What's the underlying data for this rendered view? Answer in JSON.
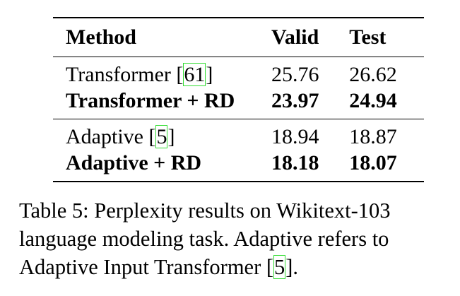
{
  "table": {
    "headers": {
      "method": "Method",
      "valid": "Valid",
      "test": "Test"
    },
    "groups": [
      {
        "rows": [
          {
            "method": "Transformer [",
            "cite": "61",
            "cite_close": "]",
            "valid": "25.76",
            "test": "26.62",
            "bold": false
          },
          {
            "method": "Transformer + RD",
            "valid": "23.97",
            "test": "24.94",
            "bold": true
          }
        ]
      },
      {
        "rows": [
          {
            "method": "Adaptive [",
            "cite": "5",
            "cite_close": "]",
            "valid": "18.94",
            "test": "18.87",
            "bold": false
          },
          {
            "method": "Adaptive + RD",
            "valid": "18.18",
            "test": "18.07",
            "bold": true
          }
        ]
      }
    ]
  },
  "caption": {
    "text_before": "Table 5: Perplexity results on Wikitext-103 language modeling task. Adaptive refers to Adaptive Input Transformer [",
    "cite": "5",
    "text_after": "]."
  },
  "colors": {
    "citation_box": "#33dd33",
    "text": "#000000"
  }
}
